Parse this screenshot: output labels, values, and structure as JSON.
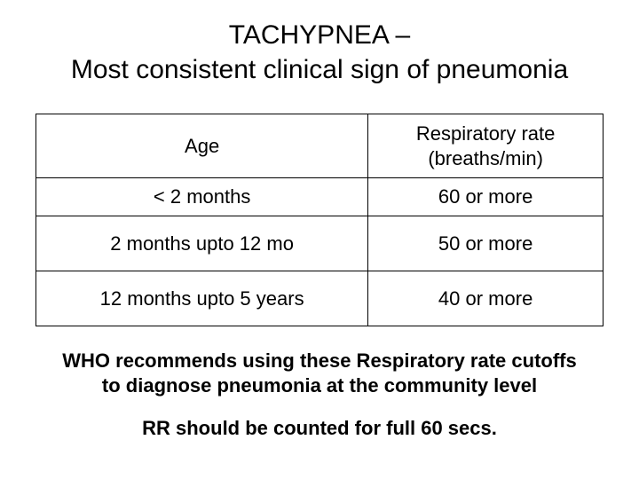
{
  "title": {
    "line1": "TACHYPNEA –",
    "line2": "Most consistent clinical sign of pneumonia"
  },
  "table": {
    "header": {
      "col1": "Age",
      "col2_line1": "Respiratory rate",
      "col2_line2": "(breaths/min)"
    },
    "rows": [
      {
        "age": "< 2 months",
        "rate": "60 or more"
      },
      {
        "age": "2 months upto 12 mo",
        "rate": "50 or more"
      },
      {
        "age": "12 months upto 5 years",
        "rate": "40 or more"
      }
    ],
    "border_color": "#000000",
    "cell_fontsize": 22,
    "text_color": "#000000"
  },
  "notes": {
    "recommendation": "WHO recommends using these Respiratory rate cutoffs to diagnose pneumonia at  the community level",
    "counting": "RR should be counted for full 60 secs."
  },
  "style": {
    "background_color": "#ffffff",
    "title_fontsize": 30,
    "note_fontsize": 22,
    "note_fontweight": "bold"
  }
}
